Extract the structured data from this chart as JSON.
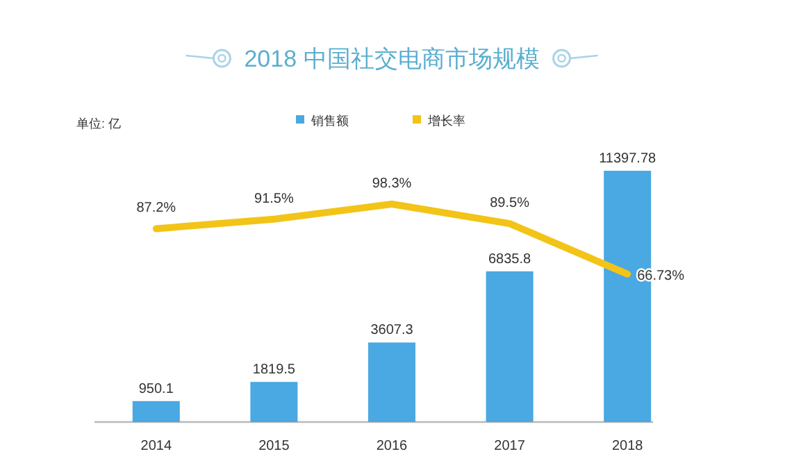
{
  "chart_data": {
    "type": "bar",
    "title": "2018 中国社交电商市场规模",
    "ylabel": "单位: 亿",
    "categories": [
      "2014",
      "2015",
      "2016",
      "2017",
      "2018"
    ],
    "series": [
      {
        "name": "销售额",
        "type": "bar",
        "color": "#4aa8e2",
        "values": [
          950.1,
          1819.5,
          3607.3,
          6835.8,
          11397.78
        ]
      },
      {
        "name": "增长率",
        "type": "line",
        "axis": "y2",
        "color": "#f2c418",
        "values": [
          87.2,
          91.5,
          98.3,
          89.5,
          66.73
        ],
        "value_labels": [
          "87.2%",
          "91.5%",
          "98.3%",
          "89.5%",
          "66.73%"
        ]
      }
    ],
    "data_labels": true,
    "legend": "top"
  }
}
